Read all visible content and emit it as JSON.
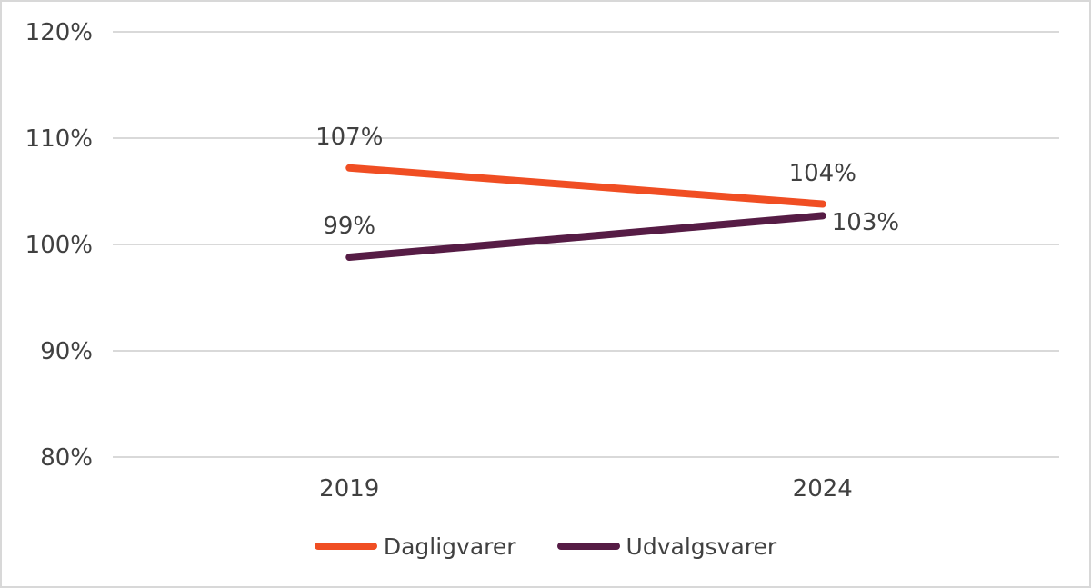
{
  "chart_data": {
    "type": "line",
    "title": "",
    "categories": [
      "2019",
      "2024"
    ],
    "series": [
      {
        "name": "Dagligvarer",
        "color": "#F04E23",
        "values": [
          107.2,
          103.8
        ],
        "point_labels": [
          "107%",
          "104%"
        ],
        "label_positions": [
          "above",
          "above"
        ]
      },
      {
        "name": "Udvalgsvarer",
        "color": "#561C45",
        "values": [
          98.8,
          102.7
        ],
        "point_labels": [
          "99%",
          "103%"
        ],
        "label_positions": [
          "above",
          "right"
        ]
      }
    ],
    "y_axis": {
      "min": 80,
      "max": 120,
      "step": 10,
      "tick_labels": [
        "80%",
        "90%",
        "100%",
        "110%",
        "120%"
      ]
    },
    "x_axis": {
      "tick_labels": [
        "2019",
        "2024"
      ]
    },
    "grid": true,
    "legend_position": "bottom",
    "legend_entries": [
      "Dagligvarer",
      "Udvalgsvarer"
    ]
  },
  "styles": {
    "grid_color": "#D9D9D9",
    "text_color": "#404040",
    "border_color": "#D8D8D8",
    "background_color": "#FFFFFF"
  }
}
